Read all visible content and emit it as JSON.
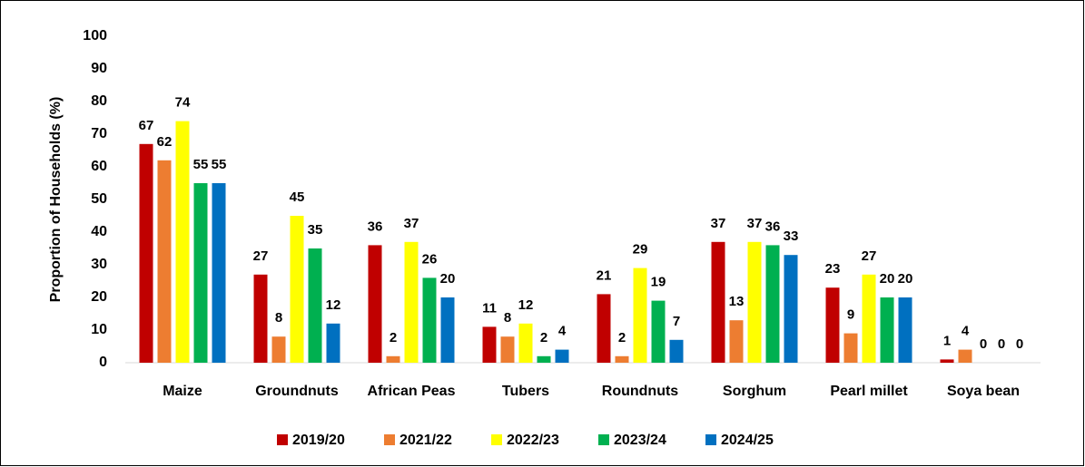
{
  "chart_data": {
    "type": "bar",
    "y_label": "Proportion of Households (%)",
    "categories": [
      "Maize",
      "Groundnuts",
      "African Peas",
      "Tubers",
      "Roundnuts",
      "Sorghum",
      "Pearl millet",
      "Soya bean"
    ],
    "series": [
      {
        "name": "2019/20",
        "color": "#c00000",
        "values": [
          67,
          27,
          36,
          11,
          21,
          37,
          23,
          1
        ]
      },
      {
        "name": "2021/22",
        "color": "#ed7d31",
        "values": [
          62,
          8,
          2,
          8,
          2,
          13,
          9,
          4
        ]
      },
      {
        "name": "2022/23",
        "color": "#ffff00",
        "values": [
          74,
          45,
          37,
          12,
          29,
          37,
          27,
          0
        ]
      },
      {
        "name": "2023/24",
        "color": "#00b050",
        "values": [
          55,
          35,
          26,
          2,
          19,
          36,
          20,
          0
        ]
      },
      {
        "name": "2024/25",
        "color": "#0070c0",
        "values": [
          55,
          12,
          20,
          4,
          7,
          33,
          20,
          0
        ]
      }
    ],
    "ylim": [
      0,
      100
    ],
    "yticks": [
      0,
      10,
      20,
      30,
      40,
      50,
      60,
      70,
      80,
      90,
      100
    ],
    "legend": "bottom"
  }
}
